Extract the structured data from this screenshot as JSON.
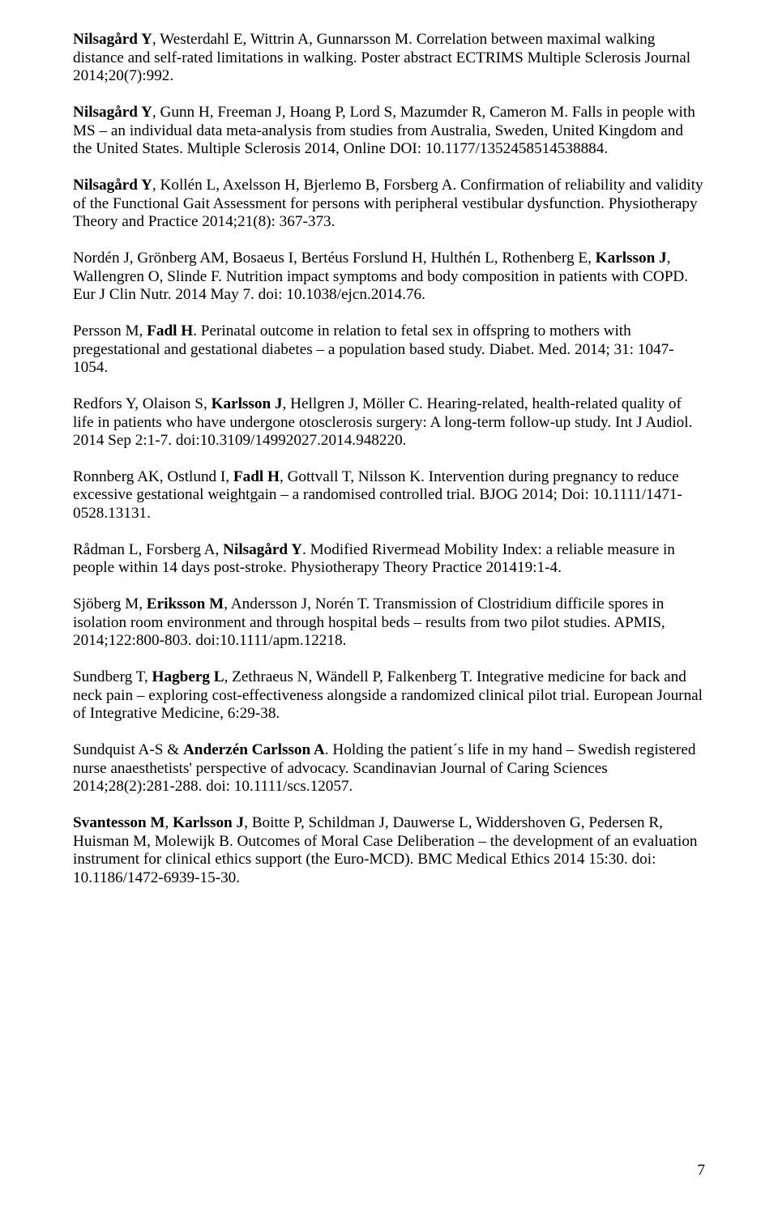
{
  "page_number": "7",
  "font": {
    "family": "Times New Roman",
    "size_pt": 14,
    "color": "#000000"
  },
  "background_color": "#ffffff",
  "paragraphs": [
    {
      "runs": [
        {
          "b": true,
          "t": "Nilsagård Y"
        },
        {
          "t": ", Westerdahl E, Wittrin A, Gunnarsson M. Correlation between maximal walking distance and self-rated limitations in walking. Poster abstract ECTRIMS Multiple Sclerosis Journal 2014;20(7):992."
        }
      ]
    },
    {
      "runs": [
        {
          "b": true,
          "t": "Nilsagård Y"
        },
        {
          "t": ", Gunn H, Freeman J, Hoang P, Lord S, Mazumder R, Cameron M. Falls in people with MS – an individual data meta-analysis from studies from Australia, Sweden, United Kingdom and the United States. Multiple Sclerosis 2014, Online DOI: 10.1177/1352458514538884."
        }
      ]
    },
    {
      "runs": [
        {
          "b": true,
          "t": "Nilsagård Y"
        },
        {
          "t": ", Kollén L, Axelsson H, Bjerlemo B, Forsberg A. Confirmation of reliability and validity of the Functional Gait Assessment for persons with peripheral vestibular dysfunction. Physiotherapy Theory and Practice 2014;21(8): 367-373."
        }
      ]
    },
    {
      "runs": [
        {
          "t": "Nordén J, Grönberg AM, Bosaeus I, Bertéus Forslund H, Hulthén L, Rothenberg E, "
        },
        {
          "b": true,
          "t": "Karlsson J"
        },
        {
          "t": ", Wallengren O, Slinde F. Nutrition impact symptoms and body composition in patients with COPD. Eur J Clin Nutr. 2014 May 7. doi: 10.1038/ejcn.2014.76."
        }
      ]
    },
    {
      "runs": [
        {
          "t": "Persson M, "
        },
        {
          "b": true,
          "t": "Fadl H"
        },
        {
          "t": ". Perinatal outcome in relation to fetal sex in offspring to mothers with pregestational and gestational diabetes – a population based study. Diabet. Med. 2014; 31: 1047-1054."
        }
      ]
    },
    {
      "runs": [
        {
          "t": "Redfors Y, Olaison S, "
        },
        {
          "b": true,
          "t": "Karlsson J"
        },
        {
          "t": ", Hellgren J, Möller C. Hearing-related, health-related quality of life in patients who have undergone otosclerosis surgery: A long-term follow-up study. Int J Audiol. 2014 Sep 2:1-7. doi:10.3109/14992027.2014.948220."
        }
      ]
    },
    {
      "runs": [
        {
          "t": "Ronnberg AK, Ostlund I, "
        },
        {
          "b": true,
          "t": "Fadl H"
        },
        {
          "t": ", Gottvall T, Nilsson K. Intervention during pregnancy to reduce excessive gestational weightgain – a randomised controlled trial. BJOG 2014; Doi: 10.1111/1471-0528.13131."
        }
      ]
    },
    {
      "runs": [
        {
          "t": "Rådman L, Forsberg A, "
        },
        {
          "b": true,
          "t": "Nilsagård Y"
        },
        {
          "t": ". Modified Rivermead Mobility Index: a reliable measure in people within 14 days post-stroke. Physiotherapy Theory Practice 201419:1-4."
        }
      ]
    },
    {
      "runs": [
        {
          "t": "Sjöberg M, "
        },
        {
          "b": true,
          "t": "Eriksson M"
        },
        {
          "t": ", Andersson J, Norén T. Transmission of Clostridium difficile spores in isolation room environment and through hospital beds – results from two pilot studies. APMIS, 2014;122:800-803. doi:10.1111/apm.12218."
        }
      ]
    },
    {
      "runs": [
        {
          "t": "Sundberg T, "
        },
        {
          "b": true,
          "t": "Hagberg L"
        },
        {
          "t": ", Zethraeus N, Wändell P, Falkenberg T. Integrative medicine for back and neck pain – exploring cost-effectiveness alongside a randomized clinical pilot trial. European Journal of Integrative Medicine, 6:29-38."
        }
      ]
    },
    {
      "runs": [
        {
          "t": "Sundquist A-S & "
        },
        {
          "b": true,
          "t": "Anderzén Carlsson A"
        },
        {
          "t": ". Holding the patient´s life in my hand – Swedish registered nurse anaesthetists' perspective of advocacy. Scandinavian Journal of Caring Sciences 2014;28(2):281-288. doi: 10.1111/scs.12057."
        }
      ]
    },
    {
      "runs": [
        {
          "b": true,
          "t": "Svantesson M"
        },
        {
          "t": ", "
        },
        {
          "b": true,
          "t": "Karlsson J"
        },
        {
          "t": ", Boitte P, Schildman J,  Dauwerse L, Widdershoven G, Pedersen R, Huisman M, Molewijk B.  Outcomes of Moral Case Deliberation – the development of an evaluation instrument for clinical ethics support (the Euro-MCD). BMC Medical Ethics 2014 15:30. doi: 10.1186/1472-6939-15-30."
        }
      ]
    }
  ]
}
